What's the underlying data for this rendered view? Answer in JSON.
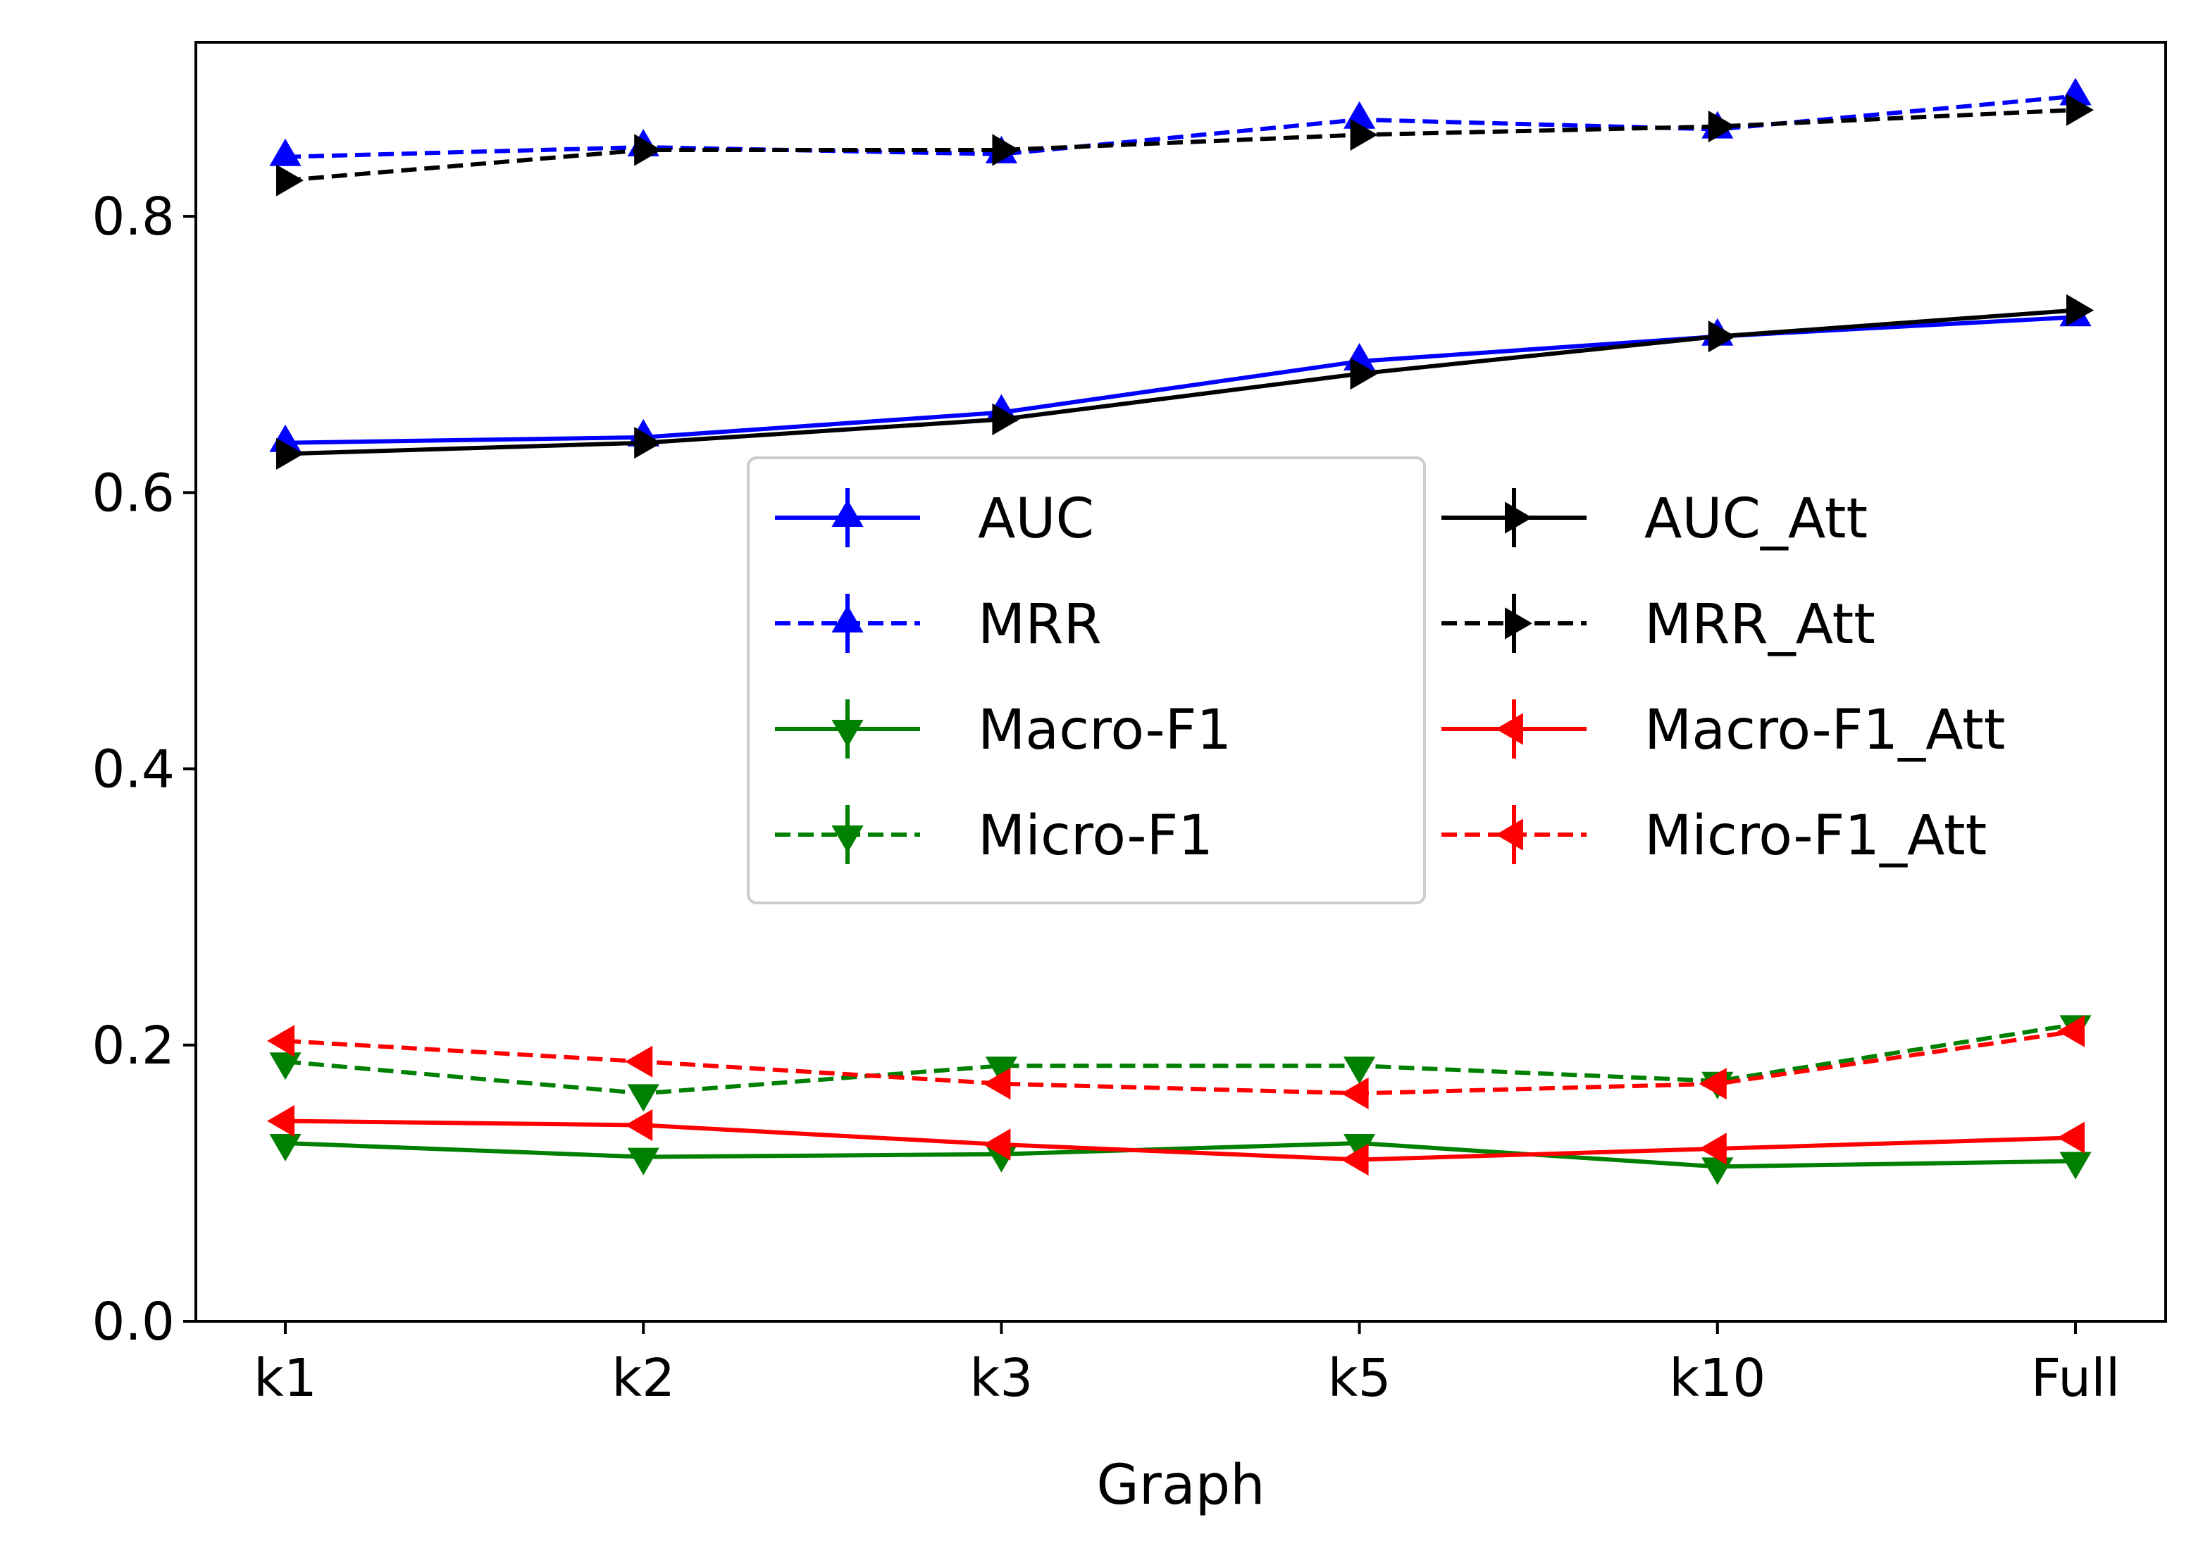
{
  "chart_data": {
    "type": "line",
    "title": "",
    "xlabel": "Graph",
    "ylabel": "",
    "categories": [
      "k1",
      "k2",
      "k3",
      "k5",
      "k10",
      "Full"
    ],
    "ylim": [
      0.0,
      0.926
    ],
    "yticks": [
      0.0,
      0.2,
      0.4,
      0.6,
      0.8
    ],
    "ytick_labels": [
      "0.0",
      "0.2",
      "0.4",
      "0.6",
      "0.8"
    ],
    "grid": false,
    "legend": {
      "placement": "center-right",
      "columns": 2
    },
    "series": [
      {
        "name": "AUC",
        "color": "#0000ff",
        "dash": "solid",
        "marker": "triangle-up",
        "values": [
          0.636,
          0.64,
          0.658,
          0.695,
          0.713,
          0.727
        ]
      },
      {
        "name": "MRR",
        "color": "#0000ff",
        "dash": "dashed",
        "marker": "triangle-up",
        "values": [
          0.843,
          0.85,
          0.845,
          0.87,
          0.863,
          0.887
        ]
      },
      {
        "name": "Macro-F1",
        "color": "#008000",
        "dash": "solid",
        "marker": "triangle-down",
        "values": [
          0.129,
          0.119,
          0.121,
          0.129,
          0.112,
          0.116
        ]
      },
      {
        "name": "Micro-F1",
        "color": "#008000",
        "dash": "dashed",
        "marker": "triangle-down",
        "values": [
          0.188,
          0.165,
          0.185,
          0.185,
          0.174,
          0.215
        ]
      },
      {
        "name": "AUC_Att",
        "color": "#000000",
        "dash": "solid",
        "marker": "triangle-right",
        "values": [
          0.628,
          0.636,
          0.653,
          0.686,
          0.713,
          0.732
        ]
      },
      {
        "name": "MRR_Att",
        "color": "#000000",
        "dash": "dashed",
        "marker": "triangle-right",
        "values": [
          0.826,
          0.848,
          0.848,
          0.859,
          0.865,
          0.877
        ]
      },
      {
        "name": "Macro-F1_Att",
        "color": "#ff0000",
        "dash": "solid",
        "marker": "triangle-left",
        "values": [
          0.145,
          0.142,
          0.128,
          0.117,
          0.125,
          0.133
        ]
      },
      {
        "name": "Micro-F1_Att",
        "color": "#ff0000",
        "dash": "dashed",
        "marker": "triangle-left",
        "values": [
          0.203,
          0.188,
          0.172,
          0.165,
          0.172,
          0.21
        ]
      }
    ]
  }
}
